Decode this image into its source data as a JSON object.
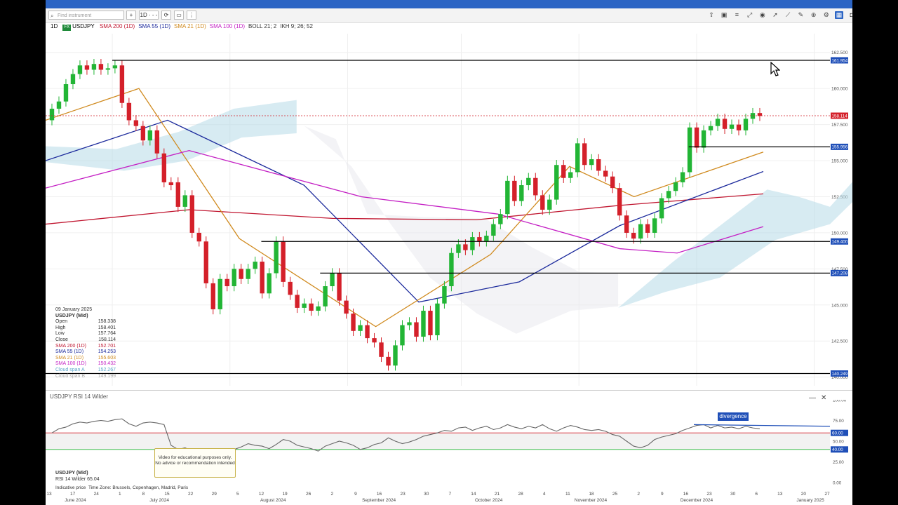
{
  "toolbar": {
    "search_placeholder": "Find instrument",
    "add_label": "+",
    "timeframe_label": "1D · - -",
    "right_icons": [
      "share-icon",
      "image-icon",
      "bar-style-icon",
      "draw-icon",
      "eye-icon",
      "cursor-icon",
      "line-tool-icon",
      "edit-icon",
      "zoom-icon",
      "settings-icon",
      "layout-icon",
      "camera-icon",
      "more-icon"
    ]
  },
  "legend": {
    "timeframe": "1D",
    "badge": "FX",
    "symbol": "USDJPY",
    "indicators": [
      {
        "text": "SMA 200 (1D)",
        "color": "#c0152f"
      },
      {
        "text": "SMA 55 (1D)",
        "color": "#1c2a9c"
      },
      {
        "text": "SMA 21 (1D)",
        "color": "#d08a1e"
      },
      {
        "text": "SMA 100 (1D)",
        "color": "#c41fc4"
      },
      {
        "text": "BOLL 21; 2",
        "color": "#333333"
      },
      {
        "text": "IKH 9; 26; 52",
        "color": "#333333"
      }
    ]
  },
  "info_panel": {
    "date": "09 January 2025",
    "instrument": "USDJPY (Mid)",
    "rows": [
      {
        "label": "Open",
        "value": "158.338",
        "color": "#333333"
      },
      {
        "label": "High",
        "value": "158.401",
        "color": "#333333"
      },
      {
        "label": "Low",
        "value": "157.764",
        "color": "#333333"
      },
      {
        "label": "Close",
        "value": "158.114",
        "color": "#333333"
      },
      {
        "label": "SMA 200 (1D)",
        "value": "152.701",
        "color": "#c0152f"
      },
      {
        "label": "SMA 55 (1D)",
        "value": "154.253",
        "color": "#1c2a9c"
      },
      {
        "label": "SMA 21 (1D)",
        "value": "155.603",
        "color": "#d08a1e"
      },
      {
        "label": "SMA 100 (1D)",
        "value": "150.432",
        "color": "#c41fc4"
      },
      {
        "label": "Cloud span A",
        "value": "152.267",
        "color": "#5aa6c9"
      },
      {
        "label": "Cloud span B",
        "value": "149.199",
        "color": "#aaaaaa"
      }
    ]
  },
  "rsi_panel": {
    "title": "USDJPY  RSI 14 Wilder",
    "instrument": "USDJPY (Mid)",
    "rsi_label": "RSI 14 Wilder",
    "rsi_value": "65.04",
    "indicative": "Indicative price",
    "timezone": "Time Zone: Brussels, Copenhagen, Madrid, Paris",
    "divergence_label": "divergence",
    "disclaimer": "Video for educational purposes only. No advice or recommendation intended",
    "minimize": "—",
    "close": "✕"
  },
  "chart_data": [
    {
      "type": "candlestick",
      "symbol": "USDJPY",
      "timeframe": "1D",
      "yticks": [
        162.5,
        160.0,
        157.5,
        155.0,
        152.5,
        150.0,
        147.5,
        145.0,
        142.5,
        140.0
      ],
      "ytick_labels": [
        "162.500",
        "160.000",
        "157.500",
        "155.000",
        "152.500",
        "150.000",
        "147.500",
        "145.000",
        "142.500",
        "140.000"
      ],
      "ylim": [
        139.4,
        163.8
      ],
      "x_day_labels": [
        "13",
        "17",
        "24",
        "1",
        "8",
        "15",
        "22",
        "29",
        "5",
        "12",
        "19",
        "26",
        "2",
        "9",
        "16",
        "23",
        "30",
        "7",
        "14",
        "21",
        "28",
        "4",
        "11",
        "18",
        "25",
        "2",
        "9",
        "16",
        "23",
        "30",
        "6",
        "13",
        "20",
        "27"
      ],
      "x_month_labels": [
        "June 2024",
        "July 2024",
        "August 2024",
        "September 2024",
        "October 2024",
        "November 2024",
        "December 2024",
        "January 2025"
      ],
      "horizontal_levels": [
        {
          "value": 161.954,
          "label": "161.954"
        },
        {
          "value": 155.956,
          "label": "155.956"
        },
        {
          "value": 149.4,
          "label": "149.400"
        },
        {
          "value": 147.208,
          "label": "147.208"
        },
        {
          "value": 140.249,
          "label": "140.249"
        }
      ],
      "current_price": {
        "value": 158.114,
        "label": "158.114"
      },
      "ohlc_close_path": [
        [
          157.8,
          158.6
        ],
        [
          158.6,
          159.1
        ],
        [
          159.1,
          160.3
        ],
        [
          160.3,
          161.0
        ],
        [
          161.0,
          161.6
        ],
        [
          161.6,
          161.3
        ],
        [
          161.3,
          161.7
        ],
        [
          161.7,
          161.3
        ],
        [
          161.3,
          161.4
        ],
        [
          161.4,
          161.6
        ],
        [
          161.6,
          159.0
        ],
        [
          159.0,
          157.8
        ],
        [
          157.8,
          157.4
        ],
        [
          157.4,
          156.4
        ],
        [
          156.4,
          157.1
        ],
        [
          157.1,
          155.5
        ],
        [
          155.5,
          153.5
        ],
        [
          153.5,
          153.3
        ],
        [
          153.5,
          151.8
        ],
        [
          151.8,
          152.6
        ],
        [
          152.6,
          150.0
        ],
        [
          150.0,
          149.4
        ],
        [
          149.4,
          146.5
        ],
        [
          146.5,
          144.7
        ],
        [
          144.7,
          146.8
        ],
        [
          146.8,
          146.3
        ],
        [
          146.3,
          147.5
        ],
        [
          147.5,
          146.8
        ],
        [
          146.8,
          147.5
        ],
        [
          147.5,
          148.0
        ],
        [
          148.0,
          145.8
        ],
        [
          145.8,
          147.2
        ],
        [
          147.2,
          149.4
        ],
        [
          149.4,
          146.6
        ],
        [
          146.6,
          145.7
        ],
        [
          145.7,
          144.8
        ],
        [
          144.8,
          145.1
        ],
        [
          145.1,
          144.6
        ],
        [
          144.6,
          144.9
        ],
        [
          144.9,
          146.3
        ],
        [
          146.3,
          147.2
        ],
        [
          147.2,
          145.3
        ],
        [
          145.3,
          144.4
        ],
        [
          144.4,
          143.2
        ],
        [
          143.2,
          143.6
        ],
        [
          143.6,
          142.7
        ],
        [
          142.7,
          142.4
        ],
        [
          142.4,
          141.4
        ],
        [
          141.4,
          140.8
        ],
        [
          140.8,
          142.2
        ],
        [
          142.2,
          143.6
        ],
        [
          143.6,
          143.8
        ],
        [
          143.8,
          142.8
        ],
        [
          142.8,
          144.6
        ],
        [
          144.6,
          142.9
        ],
        [
          142.9,
          145.1
        ],
        [
          145.1,
          146.3
        ],
        [
          146.3,
          148.6
        ],
        [
          148.6,
          149.2
        ],
        [
          149.2,
          148.8
        ],
        [
          148.8,
          149.7
        ],
        [
          149.7,
          149.4
        ],
        [
          149.4,
          149.8
        ],
        [
          149.8,
          150.6
        ],
        [
          150.6,
          151.3
        ],
        [
          151.3,
          153.6
        ],
        [
          153.6,
          152.2
        ],
        [
          152.2,
          153.3
        ],
        [
          153.3,
          153.8
        ],
        [
          153.8,
          152.6
        ],
        [
          152.6,
          151.6
        ],
        [
          151.6,
          152.3
        ],
        [
          152.3,
          154.7
        ],
        [
          154.7,
          153.8
        ],
        [
          153.8,
          154.2
        ],
        [
          154.2,
          156.2
        ],
        [
          156.2,
          154.7
        ],
        [
          154.7,
          155.1
        ],
        [
          155.1,
          154.3
        ],
        [
          154.3,
          153.9
        ],
        [
          153.9,
          153.1
        ],
        [
          153.1,
          151.2
        ],
        [
          151.2,
          150.0
        ],
        [
          150.0,
          149.6
        ],
        [
          149.6,
          150.6
        ],
        [
          150.6,
          150.0
        ],
        [
          150.0,
          151.0
        ],
        [
          151.0,
          152.4
        ],
        [
          152.4,
          152.9
        ],
        [
          152.9,
          153.5
        ],
        [
          153.5,
          154.2
        ],
        [
          154.2,
          157.3
        ],
        [
          157.3,
          155.9
        ],
        [
          155.9,
          157.1
        ],
        [
          157.1,
          157.4
        ],
        [
          157.4,
          157.9
        ],
        [
          157.9,
          157.2
        ],
        [
          157.2,
          157.5
        ],
        [
          157.5,
          157.1
        ],
        [
          157.1,
          157.9
        ],
        [
          157.9,
          158.3
        ],
        [
          158.3,
          158.1
        ]
      ],
      "sma_200": [
        [
          0,
          150.6
        ],
        [
          0.2,
          151.6
        ],
        [
          0.4,
          151.0
        ],
        [
          0.6,
          150.9
        ],
        [
          0.8,
          151.9
        ],
        [
          1.0,
          152.7
        ]
      ],
      "sma_55": [
        [
          0,
          155.0
        ],
        [
          0.17,
          157.8
        ],
        [
          0.36,
          153.3
        ],
        [
          0.52,
          145.2
        ],
        [
          0.66,
          146.6
        ],
        [
          0.8,
          150.5
        ],
        [
          1.0,
          154.25
        ]
      ],
      "sma_21": [
        [
          0,
          157.8
        ],
        [
          0.13,
          160.0
        ],
        [
          0.27,
          149.6
        ],
        [
          0.46,
          143.5
        ],
        [
          0.62,
          148.5
        ],
        [
          0.73,
          154.6
        ],
        [
          0.82,
          152.5
        ],
        [
          1.0,
          155.6
        ]
      ],
      "sma_100": [
        [
          0,
          153.1
        ],
        [
          0.2,
          155.7
        ],
        [
          0.44,
          152.5
        ],
        [
          0.63,
          151.3
        ],
        [
          0.8,
          148.9
        ],
        [
          0.88,
          148.6
        ],
        [
          1.0,
          150.43
        ]
      ]
    },
    {
      "type": "line",
      "title": "RSI 14 Wilder",
      "yticks": [
        100,
        75,
        50,
        25,
        0
      ],
      "ytick_labels": [
        "100.00",
        "75.00",
        "50.00",
        "25.00",
        "0.00"
      ],
      "levels": [
        {
          "value": 60,
          "label": "60.00"
        },
        {
          "value": 40,
          "label": "40.00"
        }
      ],
      "values": [
        60,
        65,
        67,
        71,
        73,
        72,
        74,
        75,
        74,
        76,
        77,
        71,
        68,
        72,
        73,
        72,
        70,
        45,
        40,
        42,
        38,
        34,
        30,
        28,
        33,
        36,
        40,
        43,
        47,
        45,
        44,
        41,
        46,
        52,
        50,
        45,
        43,
        41,
        38,
        44,
        47,
        50,
        48,
        45,
        40,
        42,
        46,
        48,
        54,
        50,
        47,
        49,
        52,
        56,
        58,
        60,
        63,
        62,
        66,
        67,
        63,
        66,
        68,
        64,
        66,
        70,
        67,
        65,
        68,
        66,
        70,
        65,
        62,
        66,
        69,
        67,
        64,
        63,
        64,
        62,
        58,
        56,
        50,
        44,
        42,
        45,
        52,
        55,
        57,
        59,
        63,
        66,
        69,
        70,
        66,
        69,
        66,
        67,
        65,
        68,
        66,
        65
      ]
    }
  ]
}
